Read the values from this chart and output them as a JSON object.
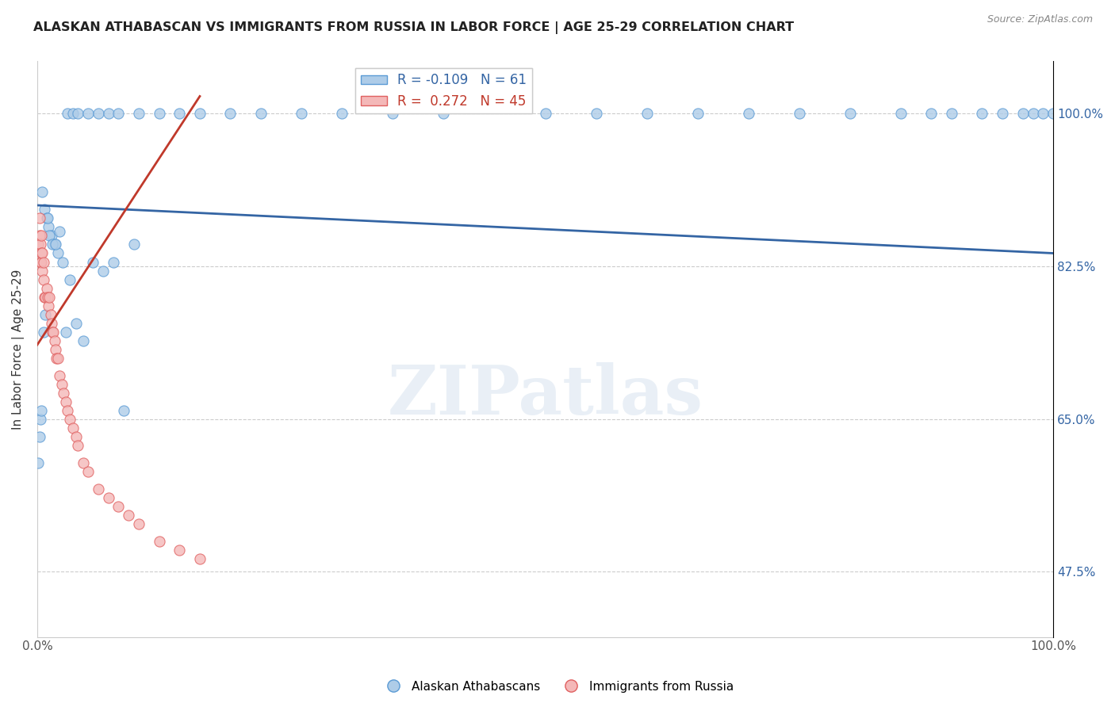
{
  "title": "ALASKAN ATHABASCAN VS IMMIGRANTS FROM RUSSIA IN LABOR FORCE | AGE 25-29 CORRELATION CHART",
  "source_text": "Source: ZipAtlas.com",
  "ylabel": "In Labor Force | Age 25-29",
  "xlim": [
    0.0,
    1.0
  ],
  "ylim": [
    0.4,
    1.06
  ],
  "yticks": [
    0.475,
    0.65,
    0.825,
    1.0
  ],
  "ytick_labels": [
    "47.5%",
    "65.0%",
    "82.5%",
    "100.0%"
  ],
  "xticks": [
    0.0,
    1.0
  ],
  "xtick_labels": [
    "0.0%",
    "100.0%"
  ],
  "blue_R": -0.109,
  "blue_N": 61,
  "pink_R": 0.272,
  "pink_N": 45,
  "blue_color": "#aecce8",
  "pink_color": "#f4b8b8",
  "blue_edge_color": "#5b9bd5",
  "pink_edge_color": "#e06060",
  "blue_line_color": "#3465a4",
  "pink_line_color": "#c0392b",
  "legend_label_blue": "Alaskan Athabascans",
  "legend_label_pink": "Immigrants from Russia",
  "watermark_text": "ZIPatlas",
  "blue_scatter_x": [
    0.005,
    0.007,
    0.009,
    0.011,
    0.014,
    0.017,
    0.02,
    0.025,
    0.03,
    0.035,
    0.04,
    0.05,
    0.06,
    0.07,
    0.08,
    0.1,
    0.12,
    0.14,
    0.16,
    0.19,
    0.22,
    0.26,
    0.3,
    0.35,
    0.4,
    0.5,
    0.55,
    0.6,
    0.65,
    0.7,
    0.75,
    0.8,
    0.85,
    0.88,
    0.9,
    0.93,
    0.95,
    0.97,
    0.98,
    0.99,
    1.0,
    0.001,
    0.002,
    0.003,
    0.004,
    0.006,
    0.008,
    0.01,
    0.012,
    0.015,
    0.018,
    0.022,
    0.028,
    0.032,
    0.038,
    0.045,
    0.055,
    0.065,
    0.075,
    0.085,
    0.095
  ],
  "blue_scatter_y": [
    0.91,
    0.89,
    0.88,
    0.87,
    0.86,
    0.85,
    0.84,
    0.83,
    1.0,
    1.0,
    1.0,
    1.0,
    1.0,
    1.0,
    1.0,
    1.0,
    1.0,
    1.0,
    1.0,
    1.0,
    1.0,
    1.0,
    1.0,
    1.0,
    1.0,
    1.0,
    1.0,
    1.0,
    1.0,
    1.0,
    1.0,
    1.0,
    1.0,
    1.0,
    1.0,
    1.0,
    1.0,
    1.0,
    1.0,
    1.0,
    1.0,
    0.6,
    0.63,
    0.65,
    0.66,
    0.75,
    0.77,
    0.88,
    0.86,
    0.85,
    0.85,
    0.865,
    0.75,
    0.81,
    0.76,
    0.74,
    0.83,
    0.82,
    0.83,
    0.66,
    0.85
  ],
  "pink_scatter_x": [
    0.001,
    0.002,
    0.002,
    0.003,
    0.003,
    0.004,
    0.004,
    0.004,
    0.005,
    0.005,
    0.006,
    0.006,
    0.007,
    0.008,
    0.009,
    0.01,
    0.011,
    0.012,
    0.013,
    0.014,
    0.015,
    0.016,
    0.017,
    0.018,
    0.019,
    0.02,
    0.022,
    0.024,
    0.026,
    0.028,
    0.03,
    0.032,
    0.035,
    0.038,
    0.04,
    0.045,
    0.05,
    0.06,
    0.07,
    0.08,
    0.09,
    0.1,
    0.12,
    0.14,
    0.16
  ],
  "pink_scatter_y": [
    0.85,
    0.86,
    0.88,
    0.83,
    0.85,
    0.83,
    0.84,
    0.86,
    0.82,
    0.84,
    0.81,
    0.83,
    0.79,
    0.79,
    0.8,
    0.79,
    0.78,
    0.79,
    0.77,
    0.76,
    0.75,
    0.75,
    0.74,
    0.73,
    0.72,
    0.72,
    0.7,
    0.69,
    0.68,
    0.67,
    0.66,
    0.65,
    0.64,
    0.63,
    0.62,
    0.6,
    0.59,
    0.57,
    0.56,
    0.55,
    0.54,
    0.53,
    0.51,
    0.5,
    0.49
  ],
  "blue_trend_x0": 0.0,
  "blue_trend_x1": 1.0,
  "blue_trend_y0": 0.895,
  "blue_trend_y1": 0.84,
  "pink_trend_x0": 0.0,
  "pink_trend_x1": 0.16,
  "pink_trend_y0": 0.735,
  "pink_trend_y1": 1.02
}
